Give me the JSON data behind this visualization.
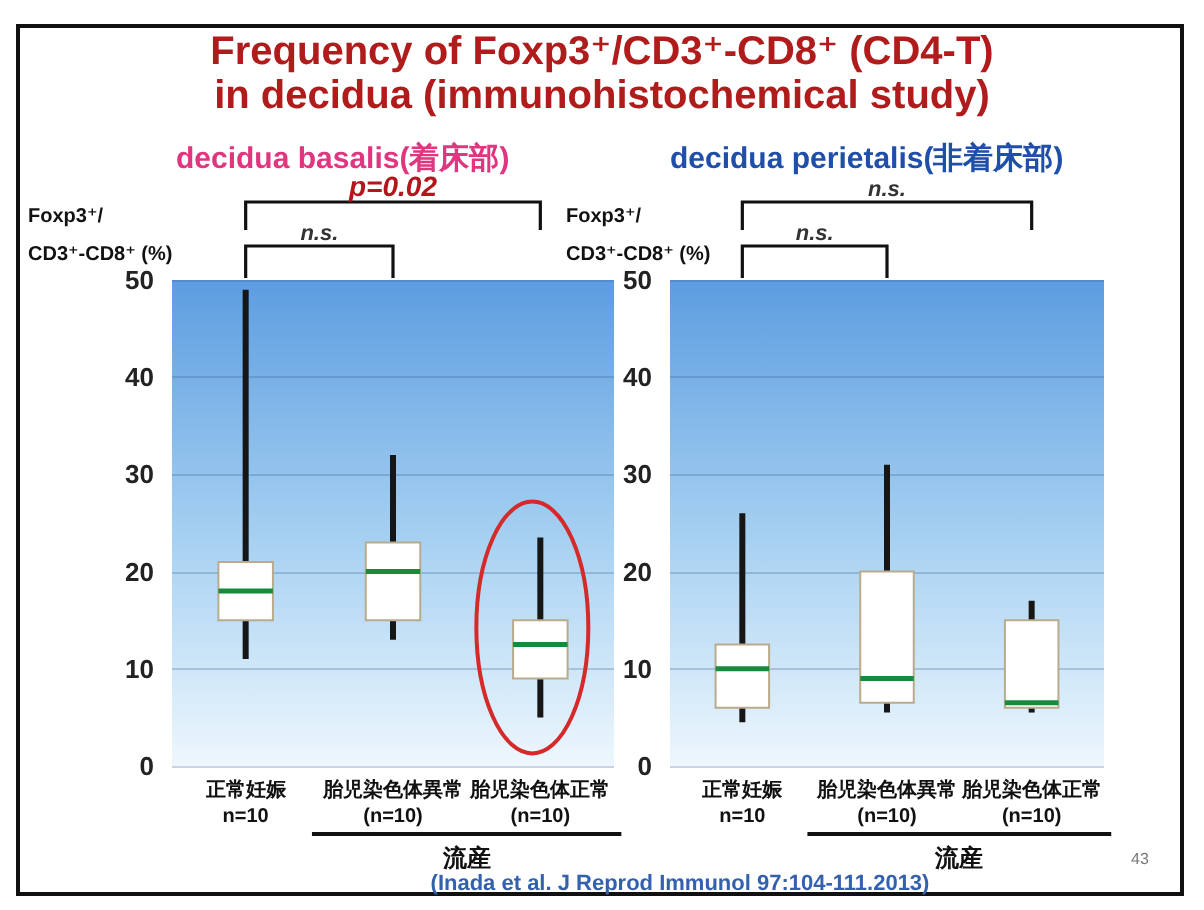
{
  "chart_data": [
    {
      "type": "box",
      "title": "Frequency of Foxp3⁺/CD3⁺-CD8⁺ (CD4-T)\nin decidua (immunohistochemical study)",
      "subtitle": "decidua basalis(着床部)",
      "ylabel": "Foxp3⁺/\nCD3⁺-CD8⁺ (%)",
      "categories": [
        "正常妊娠\nn=10",
        "胎児染色体異常\n(n=10)",
        "胎児染色体正常\n(n=10)"
      ],
      "boxes": [
        {
          "low": 11,
          "q1": 15,
          "median": 18,
          "q3": 21,
          "high": 49
        },
        {
          "low": 13,
          "q1": 15,
          "median": 20,
          "q3": 23,
          "high": 32
        },
        {
          "low": 5,
          "q1": 9,
          "median": 12.5,
          "q3": 15,
          "high": 23.5
        }
      ],
      "ylim": [
        0,
        50
      ],
      "yticks": [
        0,
        10,
        20,
        30,
        40,
        50
      ],
      "grid": "y",
      "annotations": [
        "p=0.02",
        "n.s.",
        "流産",
        "(Inada et al. J Reprod Immunol 97:104-111.2013)"
      ]
    },
    {
      "type": "box",
      "subtitle": "decidua perietalis(非着床部)",
      "ylabel": "Foxp3⁺/\nCD3⁺-CD8⁺ (%)",
      "categories": [
        "正常妊娠\nn=10",
        "胎児染色体異常\n(n=10)",
        "胎児染色体正常\n(n=10)"
      ],
      "boxes": [
        {
          "low": 4.5,
          "q1": 6,
          "median": 10,
          "q3": 12.5,
          "high": 26
        },
        {
          "low": 5.5,
          "q1": 6.5,
          "median": 9,
          "q3": 20,
          "high": 31
        },
        {
          "low": 5.5,
          "q1": 6,
          "median": 6.5,
          "q3": 15,
          "high": 17
        }
      ],
      "ylim": [
        0,
        50
      ],
      "yticks": [
        0,
        10,
        20,
        30,
        40,
        50
      ],
      "grid": "y",
      "annotations": [
        "n.s.",
        "n.s.",
        "流産",
        "43"
      ]
    }
  ]
}
